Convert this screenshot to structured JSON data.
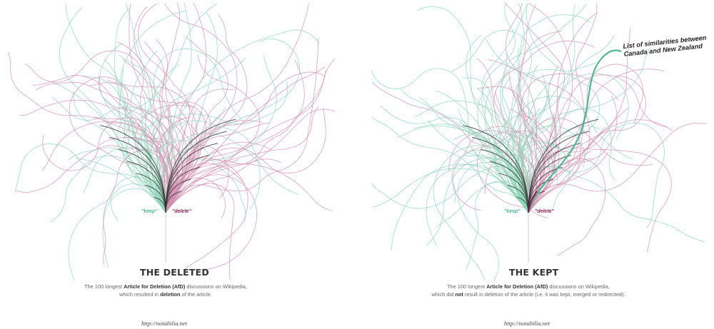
{
  "panels": [
    {
      "id": "deleted",
      "title": "THE DELETED",
      "desc_line1_pre": "The 100 longest ",
      "desc_line1_bold": "Article for Deletion (AfD)",
      "desc_line1_post": " discussions on Wikipedia,",
      "desc_line2_pre": "which resulted in ",
      "desc_line2_bold": "deletion",
      "desc_line2_post": " of the article.",
      "keep_label": "\"keep\"",
      "delete_label": "\"delete\"",
      "url": "http://notabilia.net"
    },
    {
      "id": "kept",
      "title": "THE KEPT",
      "desc_line1_pre": "The 100 longest ",
      "desc_line1_bold": "Article for Deletion (AfD)",
      "desc_line1_post": " discussions on Wikipedia,",
      "desc_line2_pre": "which did ",
      "desc_line2_bold": "not",
      "desc_line2_post": " result in deletion of the  article (i.e. it was kept, merged or redirected).",
      "keep_label": "\"keep\"",
      "delete_label": "\"delete\"",
      "url": "http://notabilia.net",
      "highlight_label": "List of similarities between Canada and New Zealand"
    }
  ],
  "colors": {
    "keep": "#4fb890",
    "delete": "#8a2355",
    "stem": "#333333",
    "faint_keep": "#8fd3b8",
    "faint_delete": "#d08fb0"
  }
}
